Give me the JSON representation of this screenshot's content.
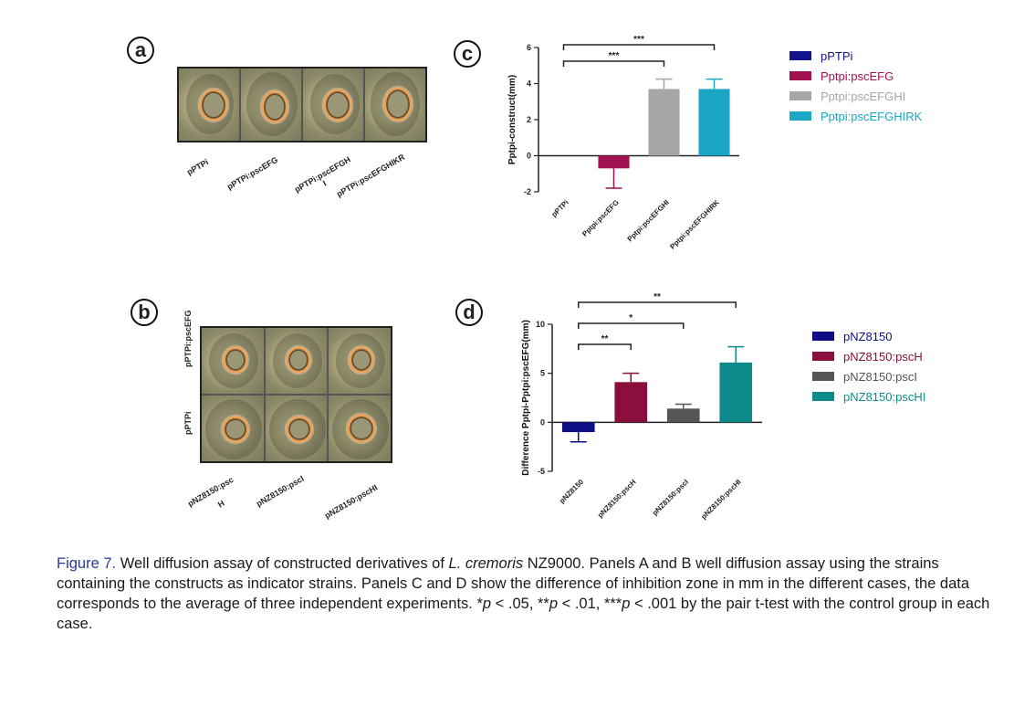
{
  "panels": {
    "a": {
      "letter": "a",
      "labels": [
        "pPTPi",
        "pPTPi:pscEFG",
        "pPTPi:pscEFGH",
        "I",
        "pPTPi:pscEFGHIKR"
      ]
    },
    "b": {
      "letter": "b",
      "row_labels": [
        "pPTPi:pscEFG",
        "pPTPi"
      ],
      "col_labels": [
        "pNZ8150:psc",
        "H",
        "pNZ8150:pscI",
        "pNZ8150:pscHI"
      ]
    },
    "c": {
      "letter": "c"
    },
    "d": {
      "letter": "d"
    }
  },
  "legend_c": [
    {
      "label": "pPTPi",
      "color": "#14148a"
    },
    {
      "label": "Pptpi:pscEFG",
      "color": "#a0114f"
    },
    {
      "label": "Pptpi:pscEFGHI",
      "color": "#a6a6a6"
    },
    {
      "label": "Pptpi:pscEFGHIRK",
      "color": "#1aa6c4"
    }
  ],
  "legend_d": [
    {
      "label": "pNZ8150",
      "color": "#0d0d86"
    },
    {
      "label": "pNZ8150:pscH",
      "color": "#8a0f3c"
    },
    {
      "label": "pNZ8150:pscI",
      "color": "#555555"
    },
    {
      "label": "pNZ8150:pscHI",
      "color": "#0e8a8a"
    }
  ],
  "chart_data": [
    {
      "type": "bar",
      "panel": "c",
      "ylabel": "Pptpi-construct(mm)",
      "categories": [
        "pPTPi",
        "Pptpi:pscEFG",
        "Pptpi:pscEFGHI",
        "Pptpi:pscEFGHIRK"
      ],
      "values": [
        0,
        -0.7,
        3.7,
        3.7
      ],
      "errors": [
        0,
        1.1,
        0.55,
        0.55
      ],
      "colors": [
        "#14148a",
        "#a0114f",
        "#a6a6a6",
        "#1aa6c4"
      ],
      "ylim": [
        -2,
        6
      ],
      "yticks": [
        "-2",
        "0",
        "2",
        "4",
        "6"
      ],
      "significance": [
        {
          "from": 0,
          "to": 2,
          "label": "***"
        },
        {
          "from": 0,
          "to": 3,
          "label": "***"
        }
      ]
    },
    {
      "type": "bar",
      "panel": "d",
      "ylabel": "Difference Pptpi-Pptpi:pscEFG(mm)",
      "categories": [
        "pNZ8150",
        "pNZ8150:pscH",
        "pNZ8150:pscI",
        "pNZ8150:pscHI"
      ],
      "values": [
        -1.0,
        4.1,
        1.4,
        6.1
      ],
      "errors": [
        1.0,
        0.9,
        0.45,
        1.6
      ],
      "colors": [
        "#0d0d86",
        "#8a0f3c",
        "#555555",
        "#0e8a8a"
      ],
      "ylim": [
        -5,
        10
      ],
      "yticks": [
        "-5",
        "0",
        "5",
        "10"
      ],
      "significance": [
        {
          "from": 0,
          "to": 1,
          "label": "**"
        },
        {
          "from": 0,
          "to": 2,
          "label": "*"
        },
        {
          "from": 0,
          "to": 3,
          "label": "**"
        }
      ]
    }
  ],
  "caption": {
    "figure_label": "Figure 7.",
    "text_1": " Well diffusion assay of constructed derivatives of ",
    "species": "L. cremoris",
    "text_2": " NZ9000. Panels A and B well diffusion assay using the strains containing the constructs as indicator strains. Panels C and D show the difference of inhibition zone in mm in the different cases, the data corresponds to the average of three independent experiments. *",
    "p1": "p",
    "t3": " < .05, **",
    "p2": "p",
    "t4": " < .01, ***",
    "p3": "p",
    "t5": " < .001 by the pair t-test with the control group in each case."
  }
}
